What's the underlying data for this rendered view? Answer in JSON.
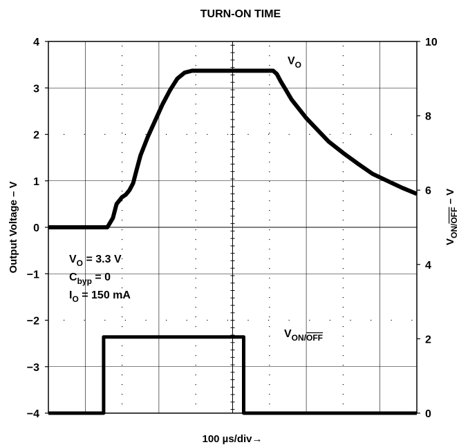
{
  "chart_data": {
    "type": "line",
    "title": "TURN-ON TIME",
    "xlabel": "100 µs/div→",
    "ylabel_left": "Output Voltage – V",
    "ylabel_right": "V_ON/OFF – V",
    "ylabel_right_parts": {
      "main": "V",
      "sub_a": "ON/",
      "sub_b": "OFF",
      "suffix": " – V"
    },
    "x_divisions": 10,
    "left_axis": {
      "ylim": [
        -4,
        4
      ],
      "ticks": [
        "4",
        "3",
        "2",
        "1",
        "0",
        "−1",
        "−2",
        "−3",
        "−4"
      ]
    },
    "right_axis": {
      "ylim": [
        0,
        10
      ],
      "ticks": [
        "10",
        "8",
        "6",
        "4",
        "2",
        "0"
      ]
    },
    "grid": true,
    "annotations": {
      "vo_label": {
        "main": "V",
        "sub": "O"
      },
      "von_label": {
        "main": "V",
        "sub_a": "ON/",
        "sub_b": "OFF"
      },
      "conditions": [
        {
          "main": "V",
          "sub": "O",
          "rest": " = 3.3 V"
        },
        {
          "main": "C",
          "sub": "byp",
          "rest": " = 0"
        },
        {
          "main": "I",
          "sub": "O",
          "rest": " = 150 mA"
        }
      ]
    },
    "series": [
      {
        "name": "VO",
        "axis": "left",
        "x": [
          0,
          0.5,
          1.0,
          1.5,
          1.6,
          1.75,
          1.85,
          2.0,
          2.1,
          2.2,
          2.3,
          2.4,
          2.5,
          2.7,
          2.9,
          3.1,
          3.3,
          3.5,
          3.7,
          3.9,
          4.1,
          4.3,
          4.5,
          4.7,
          4.9,
          5.1,
          5.3,
          5.5,
          5.7,
          5.9,
          6.1,
          6.2,
          6.3,
          6.45,
          6.6,
          6.8,
          7.0,
          7.3,
          7.6,
          8.0,
          8.4,
          8.8,
          9.2,
          9.6,
          10.0
        ],
        "y": [
          0.0,
          0.0,
          0.0,
          0.0,
          0.0,
          0.2,
          0.5,
          0.65,
          0.7,
          0.8,
          0.95,
          1.25,
          1.55,
          1.95,
          2.3,
          2.65,
          2.95,
          3.2,
          3.33,
          3.37,
          3.37,
          3.37,
          3.37,
          3.37,
          3.37,
          3.37,
          3.37,
          3.37,
          3.37,
          3.37,
          3.37,
          3.3,
          3.15,
          2.95,
          2.75,
          2.55,
          2.35,
          2.1,
          1.85,
          1.6,
          1.37,
          1.15,
          1.0,
          0.85,
          0.72
        ]
      },
      {
        "name": "VON/OFF",
        "axis": "right",
        "x": [
          0,
          1.5,
          1.5,
          5.3,
          5.3,
          10.0
        ],
        "y": [
          0.0,
          0.0,
          2.05,
          2.05,
          0.0,
          0.0
        ]
      }
    ]
  }
}
